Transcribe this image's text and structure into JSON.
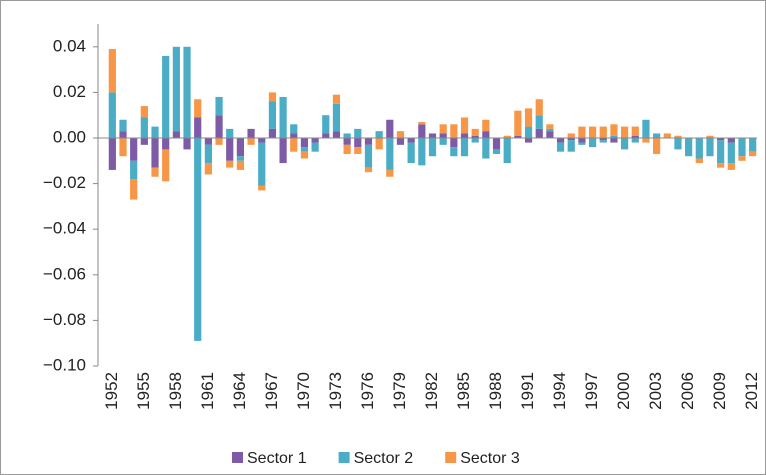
{
  "chart_data": {
    "type": "diverging-stacked-bar",
    "categories": [
      "1952",
      null,
      null,
      "1955",
      null,
      null,
      "1958",
      null,
      null,
      "1961",
      null,
      null,
      "1964",
      null,
      null,
      "1967",
      null,
      null,
      "1970",
      null,
      null,
      "1973",
      null,
      null,
      "1976",
      null,
      null,
      "1979",
      null,
      null,
      "1982",
      null,
      null,
      "1985",
      null,
      null,
      "1988",
      null,
      null,
      "1991",
      null,
      null,
      "1994",
      null,
      null,
      "1997",
      null,
      null,
      "2000",
      null,
      null,
      "2003",
      null,
      null,
      "2006",
      null,
      null,
      "2009",
      null,
      null,
      "2012"
    ],
    "series": [
      {
        "name": "Sector 1",
        "color": "#7e5ba6",
        "values": [
          -0.014,
          0.003,
          -0.01,
          -0.003,
          -0.013,
          -0.005,
          0.003,
          -0.005,
          0.009,
          -0.003,
          0.01,
          -0.01,
          -0.008,
          0.004,
          -0.002,
          0.004,
          -0.011,
          0.002,
          -0.004,
          -0.002,
          0.002,
          0.003,
          -0.003,
          -0.004,
          -0.003,
          0,
          0.008,
          -0.003,
          -0.002,
          0.006,
          0.002,
          0.002,
          -0.004,
          0.002,
          0.001,
          0.003,
          -0.005,
          0,
          0.001,
          -0.002,
          0.004,
          0.003,
          -0.002,
          -0.001,
          -0.002,
          0,
          -0.001,
          -0.002,
          0,
          0.001,
          0,
          0,
          0,
          0,
          0,
          0,
          0,
          -0.001,
          -0.002,
          0,
          0
        ]
      },
      {
        "name": "Sector 2",
        "color": "#4bacc6",
        "values": [
          0.02,
          0.005,
          -0.008,
          0.009,
          0.005,
          0.036,
          0.037,
          0.04,
          -0.089,
          -0.008,
          0.008,
          0.004,
          -0.002,
          0,
          -0.019,
          0.012,
          0.018,
          0.004,
          -0.002,
          -0.004,
          0.008,
          0.012,
          0.002,
          0.004,
          -0.01,
          0.003,
          -0.014,
          0,
          -0.009,
          -0.012,
          -0.008,
          -0.003,
          -0.004,
          -0.008,
          -0.002,
          -0.009,
          -0.002,
          -0.011,
          0,
          0.005,
          0.006,
          0.001,
          -0.004,
          -0.005,
          -0.001,
          -0.004,
          -0.001,
          0.001,
          -0.005,
          -0.002,
          0.008,
          0.002,
          0,
          -0.005,
          -0.008,
          -0.009,
          -0.008,
          -0.01,
          -0.009,
          -0.008,
          -0.006
        ]
      },
      {
        "name": "Sector 3",
        "color": "#f79646",
        "values": [
          0.019,
          -0.008,
          -0.009,
          0.005,
          -0.004,
          -0.014,
          0,
          0,
          0.008,
          -0.005,
          -0.003,
          -0.003,
          -0.004,
          -0.003,
          -0.002,
          0.004,
          0,
          -0.006,
          -0.003,
          0,
          0,
          0.004,
          -0.004,
          -0.003,
          -0.002,
          -0.005,
          -0.003,
          0.003,
          0,
          0.001,
          0,
          0.004,
          0.006,
          0.007,
          0.003,
          0.005,
          0,
          0.001,
          0.011,
          0.008,
          0.007,
          0.002,
          0,
          0.002,
          0.005,
          0.005,
          0.005,
          0.005,
          0.005,
          0.004,
          -0.002,
          -0.007,
          0.002,
          0.001,
          0,
          -0.002,
          0.001,
          -0.002,
          -0.003,
          -0.002,
          -0.002
        ]
      }
    ],
    "ylim": [
      -0.1,
      0.05
    ],
    "yticks": [
      0.04,
      0.02,
      {
        "value": 0,
        "label": "0.00"
      },
      {
        "value": -0.02,
        "label": "−0.02"
      },
      {
        "value": -0.04,
        "label": "−0.04"
      },
      {
        "value": -0.06,
        "label": "−0.06"
      },
      {
        "value": -0.08,
        "label": "−0.08"
      },
      {
        "value": -0.1,
        "label": "−0.10"
      }
    ],
    "legend": "bottom"
  }
}
